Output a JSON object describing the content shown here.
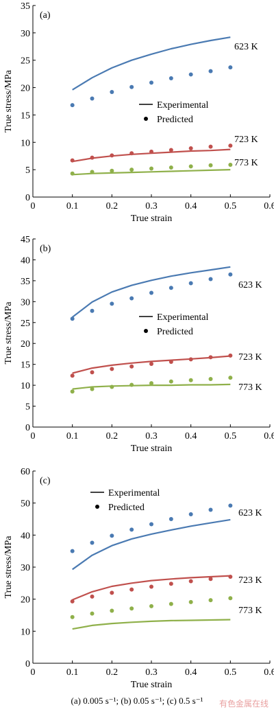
{
  "caption": "(a) 0.005 s⁻¹; (b) 0.05 s⁻¹; (c) 0.5 s⁻¹",
  "watermark": "有色金属在线",
  "colors": {
    "623K": "#4a7ab2",
    "723K": "#c0504d",
    "773K": "#8fb04a"
  },
  "chart_data": [
    {
      "type": "line",
      "panel_label": "(a)",
      "xlabel": "True strain",
      "ylabel": "True stress/MPa",
      "xlim": [
        0,
        0.6
      ],
      "ylim": [
        0,
        35
      ],
      "xticks": [
        "0",
        "0.1",
        "0.2",
        "0.3",
        "0.4",
        "0.5",
        "0.6"
      ],
      "yticks": [
        "0",
        "5",
        "10",
        "15",
        "20",
        "25",
        "30",
        "35"
      ],
      "legend": {
        "position": "middle-right",
        "experimental": "Experimental",
        "predicted": "Predicted"
      },
      "series": [
        {
          "name": "623 K",
          "color": "#4a7ab2",
          "experimental": {
            "x": [
              0.1,
              0.15,
              0.2,
              0.25,
              0.3,
              0.35,
              0.4,
              0.45,
              0.5
            ],
            "y": [
              19.6,
              21.8,
              23.6,
              25.0,
              26.1,
              27.1,
              27.9,
              28.6,
              29.2
            ]
          },
          "predicted": {
            "x": [
              0.1,
              0.15,
              0.2,
              0.25,
              0.3,
              0.35,
              0.4,
              0.45,
              0.5
            ],
            "y": [
              16.8,
              18.0,
              19.2,
              20.1,
              20.9,
              21.7,
              22.4,
              23.0,
              23.7
            ]
          }
        },
        {
          "name": "723 K",
          "color": "#c0504d",
          "experimental": {
            "x": [
              0.1,
              0.15,
              0.2,
              0.25,
              0.3,
              0.35,
              0.4,
              0.45,
              0.5
            ],
            "y": [
              6.5,
              7.1,
              7.5,
              7.8,
              8.0,
              8.2,
              8.4,
              8.5,
              8.7
            ]
          },
          "predicted": {
            "x": [
              0.1,
              0.15,
              0.2,
              0.25,
              0.3,
              0.35,
              0.4,
              0.45,
              0.5
            ],
            "y": [
              6.7,
              7.2,
              7.6,
              8.0,
              8.3,
              8.6,
              8.9,
              9.2,
              9.4
            ]
          }
        },
        {
          "name": "773 K",
          "color": "#8fb04a",
          "experimental": {
            "x": [
              0.1,
              0.15,
              0.2,
              0.25,
              0.3,
              0.35,
              0.4,
              0.45,
              0.5
            ],
            "y": [
              4.1,
              4.3,
              4.4,
              4.5,
              4.6,
              4.7,
              4.8,
              4.9,
              5.0
            ]
          },
          "predicted": {
            "x": [
              0.1,
              0.15,
              0.2,
              0.25,
              0.3,
              0.35,
              0.4,
              0.45,
              0.5
            ],
            "y": [
              4.3,
              4.6,
              4.8,
              5.0,
              5.2,
              5.4,
              5.6,
              5.8,
              5.9
            ]
          }
        }
      ]
    },
    {
      "type": "line",
      "panel_label": "(b)",
      "xlabel": "True strain",
      "ylabel": "True stress/MPa",
      "xlim": [
        0,
        0.6
      ],
      "ylim": [
        0,
        45
      ],
      "xticks": [
        "0",
        "0.1",
        "0.2",
        "0.3",
        "0.4",
        "0.5",
        "0.6"
      ],
      "yticks": [
        "0",
        "5",
        "10",
        "15",
        "20",
        "25",
        "30",
        "35",
        "40",
        "45"
      ],
      "legend": {
        "position": "middle-right",
        "experimental": "Experimental",
        "predicted": "Predicted"
      },
      "series": [
        {
          "name": "623 K",
          "color": "#4a7ab2",
          "experimental": {
            "x": [
              0.1,
              0.15,
              0.2,
              0.25,
              0.3,
              0.35,
              0.4,
              0.45,
              0.5
            ],
            "y": [
              26.3,
              29.9,
              32.3,
              33.9,
              35.1,
              36.1,
              36.9,
              37.6,
              38.3
            ]
          },
          "predicted": {
            "x": [
              0.1,
              0.15,
              0.2,
              0.25,
              0.3,
              0.35,
              0.4,
              0.45,
              0.5
            ],
            "y": [
              25.9,
              27.8,
              29.5,
              30.8,
              32.1,
              33.3,
              34.4,
              35.4,
              36.5
            ]
          }
        },
        {
          "name": "723 K",
          "color": "#c0504d",
          "experimental": {
            "x": [
              0.1,
              0.15,
              0.2,
              0.25,
              0.3,
              0.35,
              0.4,
              0.45,
              0.5
            ],
            "y": [
              12.9,
              14.1,
              14.8,
              15.3,
              15.7,
              16.0,
              16.3,
              16.6,
              17.0
            ]
          },
          "predicted": {
            "x": [
              0.1,
              0.15,
              0.2,
              0.25,
              0.3,
              0.35,
              0.4,
              0.45,
              0.5
            ],
            "y": [
              12.3,
              13.1,
              13.9,
              14.5,
              15.1,
              15.6,
              16.2,
              16.7,
              17.1
            ]
          }
        },
        {
          "name": "773 K",
          "color": "#8fb04a",
          "experimental": {
            "x": [
              0.1,
              0.15,
              0.2,
              0.25,
              0.3,
              0.35,
              0.4,
              0.45,
              0.5
            ],
            "y": [
              9.1,
              9.6,
              9.8,
              9.9,
              10.0,
              10.0,
              10.1,
              10.1,
              10.2
            ]
          },
          "predicted": {
            "x": [
              0.1,
              0.15,
              0.2,
              0.25,
              0.3,
              0.35,
              0.4,
              0.45,
              0.5
            ],
            "y": [
              8.5,
              9.1,
              9.6,
              10.1,
              10.5,
              10.9,
              11.2,
              11.5,
              11.8
            ]
          }
        }
      ]
    },
    {
      "type": "line",
      "panel_label": "(c)",
      "xlabel": "True strain",
      "ylabel": "True stress/MPa",
      "xlim": [
        0,
        0.6
      ],
      "ylim": [
        0,
        60
      ],
      "xticks": [
        "0",
        "0.1",
        "0.2",
        "0.3",
        "0.4",
        "0.5",
        "0.6"
      ],
      "yticks": [
        "0",
        "10",
        "20",
        "30",
        "40",
        "50",
        "60"
      ],
      "legend": {
        "position": "top-left",
        "experimental": "Experimental",
        "predicted": "Predicted"
      },
      "series": [
        {
          "name": "623 K",
          "color": "#4a7ab2",
          "experimental": {
            "x": [
              0.1,
              0.15,
              0.2,
              0.25,
              0.3,
              0.35,
              0.4,
              0.45,
              0.5
            ],
            "y": [
              29.3,
              33.7,
              36.7,
              38.8,
              40.3,
              41.6,
              42.8,
              43.8,
              44.8
            ]
          },
          "predicted": {
            "x": [
              0.1,
              0.15,
              0.2,
              0.25,
              0.3,
              0.35,
              0.4,
              0.45,
              0.5
            ],
            "y": [
              35.0,
              37.6,
              39.8,
              41.7,
              43.4,
              45.0,
              46.5,
              47.9,
              49.2
            ]
          }
        },
        {
          "name": "723 K",
          "color": "#c0504d",
          "experimental": {
            "x": [
              0.1,
              0.15,
              0.2,
              0.25,
              0.3,
              0.35,
              0.4,
              0.45,
              0.5
            ],
            "y": [
              19.8,
              22.3,
              24.0,
              25.0,
              25.8,
              26.3,
              26.7,
              27.0,
              27.3
            ]
          },
          "predicted": {
            "x": [
              0.1,
              0.15,
              0.2,
              0.25,
              0.3,
              0.35,
              0.4,
              0.45,
              0.5
            ],
            "y": [
              19.3,
              20.8,
              22.0,
              23.0,
              23.9,
              24.8,
              25.6,
              26.3,
              27.0
            ]
          }
        },
        {
          "name": "773 K",
          "color": "#8fb04a",
          "experimental": {
            "x": [
              0.1,
              0.15,
              0.2,
              0.25,
              0.3,
              0.35,
              0.4,
              0.45,
              0.5
            ],
            "y": [
              10.7,
              11.8,
              12.4,
              12.8,
              13.1,
              13.3,
              13.4,
              13.5,
              13.6
            ]
          },
          "predicted": {
            "x": [
              0.1,
              0.15,
              0.2,
              0.25,
              0.3,
              0.35,
              0.4,
              0.45,
              0.5
            ],
            "y": [
              14.4,
              15.5,
              16.4,
              17.1,
              17.8,
              18.5,
              19.1,
              19.7,
              20.3
            ]
          }
        }
      ]
    }
  ]
}
